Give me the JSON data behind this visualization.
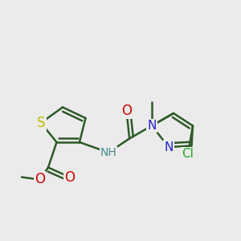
{
  "bg_color": "#ebebeb",
  "bond_color": "#2d5a27",
  "bond_width": 1.8,
  "atoms": {
    "S": {
      "color": "#bbbb00"
    },
    "O": {
      "color": "#cc0000"
    },
    "N": {
      "color": "#2222cc"
    },
    "Cl": {
      "color": "#22aa22"
    },
    "NH": {
      "color": "#4a8888"
    }
  },
  "font_sizes": {
    "S": 12,
    "O": 12,
    "N": 11,
    "Cl": 11,
    "NH": 10
  }
}
